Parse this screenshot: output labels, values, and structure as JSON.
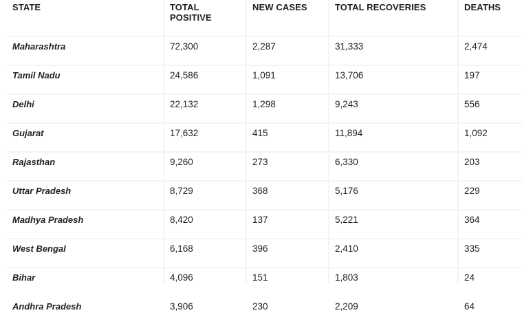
{
  "table": {
    "headers": [
      "STATE",
      "TOTAL POSITIVE",
      "NEW CASES",
      "TOTAL RECOVERIES",
      "DEATHS"
    ],
    "rows": [
      [
        "Maharashtra",
        "72,300",
        "2,287",
        "31,333",
        "2,474"
      ],
      [
        "Tamil Nadu",
        "24,586",
        "1,091",
        "13,706",
        "197"
      ],
      [
        "Delhi",
        "22,132",
        "1,298",
        "9,243",
        "556"
      ],
      [
        "Gujarat",
        "17,632",
        "415",
        "11,894",
        "1,092"
      ],
      [
        "Rajasthan",
        "9,260",
        "273",
        "6,330",
        "203"
      ],
      [
        "Uttar Pradesh",
        "8,729",
        "368",
        "5,176",
        "229"
      ],
      [
        "Madhya Pradesh",
        "8,420",
        "137",
        "5,221",
        "364"
      ],
      [
        "West Bengal",
        "6,168",
        "396",
        "2,410",
        "335"
      ],
      [
        "Bihar",
        "4,096",
        "151",
        "1,803",
        "24"
      ],
      [
        "Andhra Pradesh",
        "3,906",
        "230",
        "2,209",
        "64"
      ]
    ]
  }
}
